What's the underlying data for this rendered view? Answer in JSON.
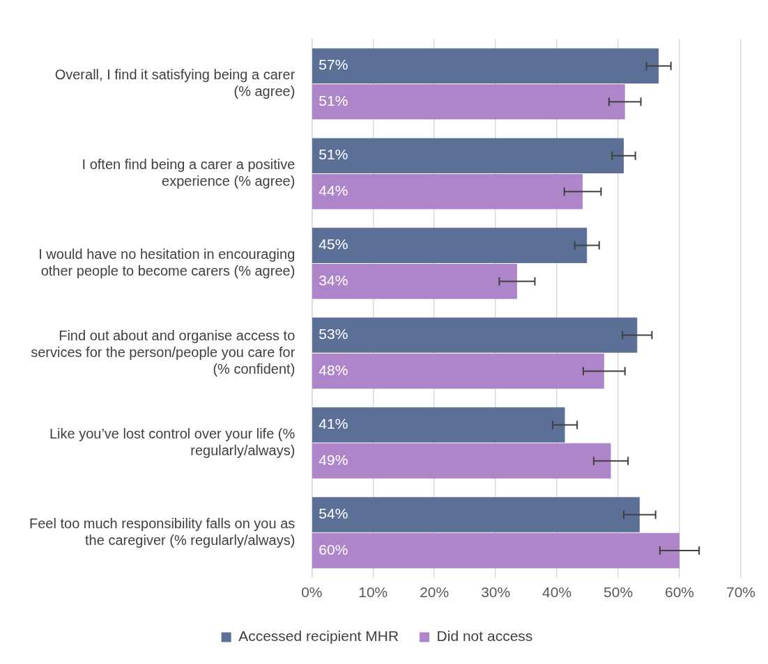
{
  "chart_data": {
    "type": "bar",
    "orientation": "horizontal",
    "categories": [
      "Overall, I find it satisfying being a carer (% agree)",
      "I often find being a carer a positive experience (% agree)",
      "I would have no hesitation in encouraging other people to become carers (% agree)",
      "Find out about and organise access to services for the person/people you care for (% confident)",
      "Like you’ve lost control over your life (% regularly/always)",
      "Feel too much responsibility falls on you as the caregiver (% regularly/always)"
    ],
    "series": [
      {
        "name": "Accessed recipient MHR",
        "color": "#5b6f97",
        "values": [
          56.6,
          50.9,
          44.9,
          53.1,
          41.3,
          53.5
        ],
        "errors": [
          2,
          1.9,
          2,
          2.4,
          2,
          2.6
        ],
        "value_labels": [
          "57%",
          "51%",
          "45%",
          "53%",
          "41%",
          "54%"
        ]
      },
      {
        "name": "Did not access",
        "color": "#ad85c8",
        "values": [
          51.1,
          44.2,
          33.5,
          47.7,
          48.8,
          60
        ],
        "errors": [
          2.6,
          3,
          2.9,
          3.4,
          2.8,
          3.2
        ],
        "value_labels": [
          "51%",
          "44%",
          "34%",
          "48%",
          "49%",
          "60%"
        ]
      }
    ],
    "xlim": [
      0,
      70
    ],
    "xticks": [
      {
        "value": 0,
        "label": "0%"
      },
      {
        "value": 10,
        "label": "10%"
      },
      {
        "value": 20,
        "label": "20%"
      },
      {
        "value": 30,
        "label": "30%"
      },
      {
        "value": 40,
        "label": "40%"
      },
      {
        "value": 50,
        "label": "50%"
      },
      {
        "value": 60,
        "label": "60%"
      },
      {
        "value": 70,
        "label": "70%"
      }
    ],
    "grid": "x",
    "legend": "bottom"
  }
}
